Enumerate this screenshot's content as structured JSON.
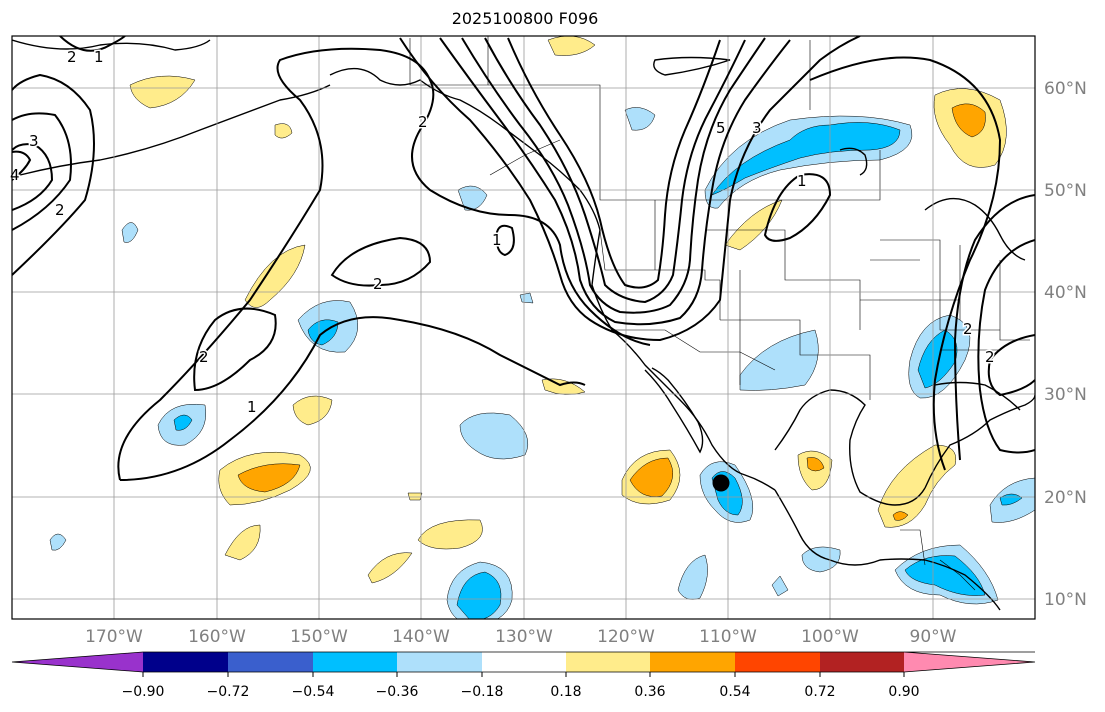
{
  "title": "2025100800 F096",
  "lon_labels": [
    "170°W",
    "160°W",
    "150°W",
    "140°W",
    "130°W",
    "120°W",
    "110°W",
    "100°W",
    "90°W"
  ],
  "lat_labels": [
    "60°N",
    "50°N",
    "40°N",
    "30°N",
    "20°N",
    "10°N"
  ],
  "colorbar": {
    "ticks": [
      "−0.90",
      "−0.72",
      "−0.54",
      "−0.36",
      "−0.18",
      "0.18",
      "0.36",
      "0.54",
      "0.72",
      "0.90"
    ],
    "colors": [
      "#9932cc",
      "#00008b",
      "#3a5fcd",
      "#00bfff",
      "#aee0fb",
      "#ffffff",
      "#ffec8b",
      "#ffa500",
      "#ff4500",
      "#b22222",
      "#ff8ab0"
    ]
  },
  "contour_labels": [
    "2",
    "1",
    "3",
    "4",
    "2",
    "2",
    "1",
    "2",
    "2",
    "1",
    "5",
    "3",
    "1",
    "2",
    "2"
  ],
  "marker": "black-dot",
  "colors": {
    "grid": "#9a9a9a",
    "axis_text": "#808080",
    "contour": "#000000",
    "pos_light": "#ffec8b",
    "pos_mid": "#ffa500",
    "neg_light": "#aee0fb",
    "neg_mid": "#00bfff"
  }
}
